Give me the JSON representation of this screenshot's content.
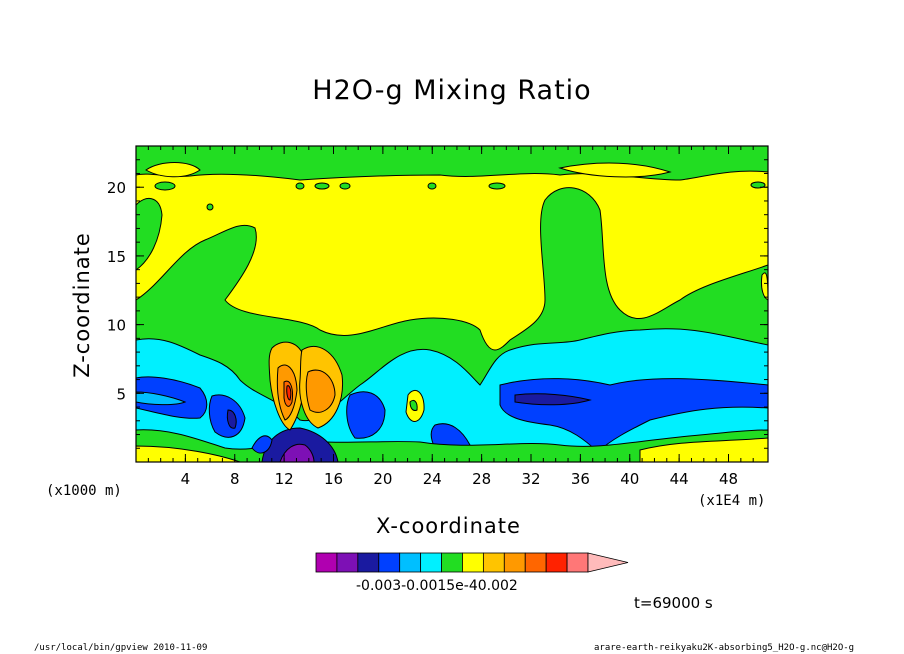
{
  "chart_data": {
    "type": "heatmap",
    "title": "H2O-g Mixing Ratio",
    "xlabel": "X-coordinate",
    "ylabel": "Z-coordinate",
    "x_unit_left": "(x1000 m)",
    "x_unit_right": "(x1E4 m)",
    "xticks": [
      "4",
      "8",
      "12",
      "16",
      "20",
      "24",
      "28",
      "32",
      "36",
      "40",
      "44",
      "48"
    ],
    "yticks": [
      "5",
      "10",
      "15",
      "20"
    ],
    "xlim": [
      0,
      51.2
    ],
    "ylim": [
      0,
      23
    ],
    "colorbar": {
      "colors": [
        "#b000b0",
        "#7d10b5",
        "#1a1aa0",
        "#0040ff",
        "#00bfff",
        "#00f0ff",
        "#22dd22",
        "#ffff00",
        "#ffc400",
        "#ff9900",
        "#ff6600",
        "#ff2200",
        "#ff7777",
        "#ffbbbb"
      ],
      "tick_text": "-0.003-0.0015e-40.002"
    },
    "legend": "none",
    "grid": false
  },
  "time_label": "t=69000 s",
  "footer_left": "/usr/local/bin/gpview  2010-11-09",
  "footer_right": "arare-earth-reikyaku2K-absorbing5_H2O-g.nc@H2O-g"
}
